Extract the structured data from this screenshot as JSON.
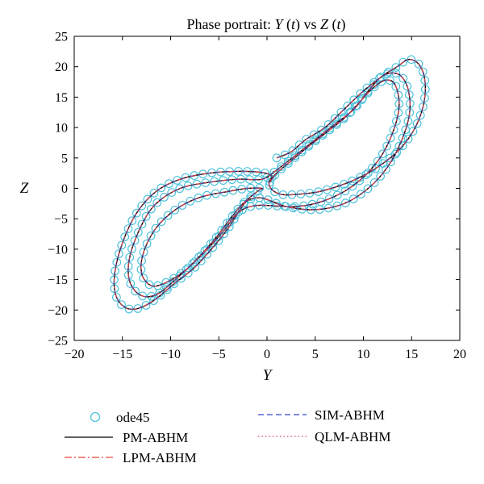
{
  "chart_data": {
    "type": "line",
    "title_parts": [
      "Phase portrait: ",
      "Y",
      " (",
      "t",
      ") vs ",
      "Z",
      " (",
      "t",
      ")"
    ],
    "xlabel": "Y",
    "ylabel": "Z",
    "xlim": [
      -20,
      20
    ],
    "ylim": [
      -25,
      25
    ],
    "xticks": [
      -20,
      -15,
      -10,
      -5,
      0,
      5,
      10,
      15,
      20
    ],
    "yticks": [
      -25,
      -20,
      -15,
      -10,
      -5,
      0,
      5,
      10,
      15,
      20,
      25
    ],
    "grid": false,
    "legend_position": "below",
    "legend": [
      {
        "name": "ode45",
        "style": "circle",
        "color": "#4fc3dc"
      },
      {
        "name": "PM-ABHM",
        "style": "solid",
        "color": "#000000"
      },
      {
        "name": "LPM-ABHM",
        "style": "dashdot",
        "color": "#e8463a"
      },
      {
        "name": "SIM-ABHM",
        "style": "dashed",
        "color": "#3344cc"
      },
      {
        "name": "QLM-ABHM",
        "style": "dotted",
        "color": "#d0407a"
      }
    ],
    "trajectory": [
      [
        1,
        5
      ],
      [
        2.5,
        6
      ],
      [
        4,
        8
      ],
      [
        6,
        10
      ],
      [
        8,
        13
      ],
      [
        10,
        16
      ],
      [
        12,
        18.5
      ],
      [
        13.5,
        20
      ],
      [
        14.7,
        21.2
      ],
      [
        15.8,
        20.3
      ],
      [
        16.4,
        17.5
      ],
      [
        16.2,
        13.5
      ],
      [
        15.2,
        9.5
      ],
      [
        13.5,
        6
      ],
      [
        11,
        3
      ],
      [
        8.5,
        1
      ],
      [
        5.5,
        -0.5
      ],
      [
        3,
        -1
      ],
      [
        1.5,
        -1
      ],
      [
        0.5,
        -0.2
      ],
      [
        0.2,
        1
      ],
      [
        0.5,
        2
      ],
      [
        -0.5,
        2.6
      ],
      [
        -3,
        2.8
      ],
      [
        -6,
        2.5
      ],
      [
        -9,
        1.5
      ],
      [
        -11.5,
        -0.5
      ],
      [
        -13.5,
        -4
      ],
      [
        -15,
        -9
      ],
      [
        -15.8,
        -14
      ],
      [
        -15.7,
        -17.5
      ],
      [
        -14.8,
        -19.5
      ],
      [
        -13.5,
        -19.8
      ],
      [
        -11.8,
        -18.5
      ],
      [
        -9.5,
        -15.5
      ],
      [
        -7.5,
        -13
      ],
      [
        -5.5,
        -9.5
      ],
      [
        -4,
        -6.5
      ],
      [
        -3,
        -4
      ],
      [
        -2,
        -2
      ],
      [
        -0.5,
        -1.6
      ],
      [
        2,
        -3
      ],
      [
        5,
        -3.5
      ],
      [
        8,
        -2.5
      ],
      [
        10.5,
        0
      ],
      [
        12.5,
        3.5
      ],
      [
        14,
        8
      ],
      [
        14.8,
        12.5
      ],
      [
        14.6,
        16.5
      ],
      [
        13.6,
        18.8
      ],
      [
        12,
        18.5
      ],
      [
        10.5,
        16
      ],
      [
        9,
        13
      ],
      [
        7,
        10.5
      ],
      [
        5,
        8
      ],
      [
        3,
        5.5
      ],
      [
        1,
        3
      ],
      [
        -0.5,
        1.5
      ],
      [
        -3,
        1.5
      ],
      [
        -6,
        1
      ],
      [
        -9,
        0
      ],
      [
        -11.5,
        -2.5
      ],
      [
        -13,
        -6
      ],
      [
        -14.2,
        -11
      ],
      [
        -14.3,
        -15
      ],
      [
        -13.2,
        -17.5
      ],
      [
        -11.5,
        -17.5
      ],
      [
        -9.5,
        -15
      ],
      [
        -7.5,
        -12
      ],
      [
        -5.5,
        -8.5
      ],
      [
        -3.8,
        -5
      ],
      [
        -2.5,
        -2.5
      ],
      [
        -1,
        -0.5
      ],
      [
        -0.5,
        0
      ],
      [
        -2,
        0
      ],
      [
        -4,
        -0.5
      ],
      [
        -7,
        -1.5
      ],
      [
        -9.5,
        -3.5
      ],
      [
        -11.5,
        -6.5
      ],
      [
        -12.8,
        -10.5
      ],
      [
        -13,
        -14
      ],
      [
        -12,
        -16
      ],
      [
        -10.5,
        -15.5
      ],
      [
        -8.5,
        -13.5
      ],
      [
        -6.5,
        -10.5
      ],
      [
        -4.5,
        -7
      ],
      [
        -3,
        -4
      ],
      [
        -1,
        -2.8
      ],
      [
        3,
        -3
      ],
      [
        6,
        -2
      ],
      [
        9,
        0.5
      ],
      [
        11.5,
        4.5
      ],
      [
        13,
        9
      ],
      [
        13.7,
        13.5
      ],
      [
        13.3,
        17
      ],
      [
        12.3,
        17.8
      ],
      [
        11,
        16.5
      ],
      [
        9.5,
        14
      ],
      [
        8,
        11.5
      ],
      [
        6,
        9
      ],
      [
        4,
        6.5
      ],
      [
        2.5,
        4.5
      ],
      [
        1,
        2.5
      ],
      [
        0.3,
        1
      ]
    ]
  },
  "title": "Phase portrait: Y (t) vs Z (t)",
  "legend_labels": {
    "ode45": "ode45",
    "pm": "PM-ABHM",
    "lpm": "LPM-ABHM",
    "sim": "SIM-ABHM",
    "qlm": "QLM-ABHM"
  }
}
